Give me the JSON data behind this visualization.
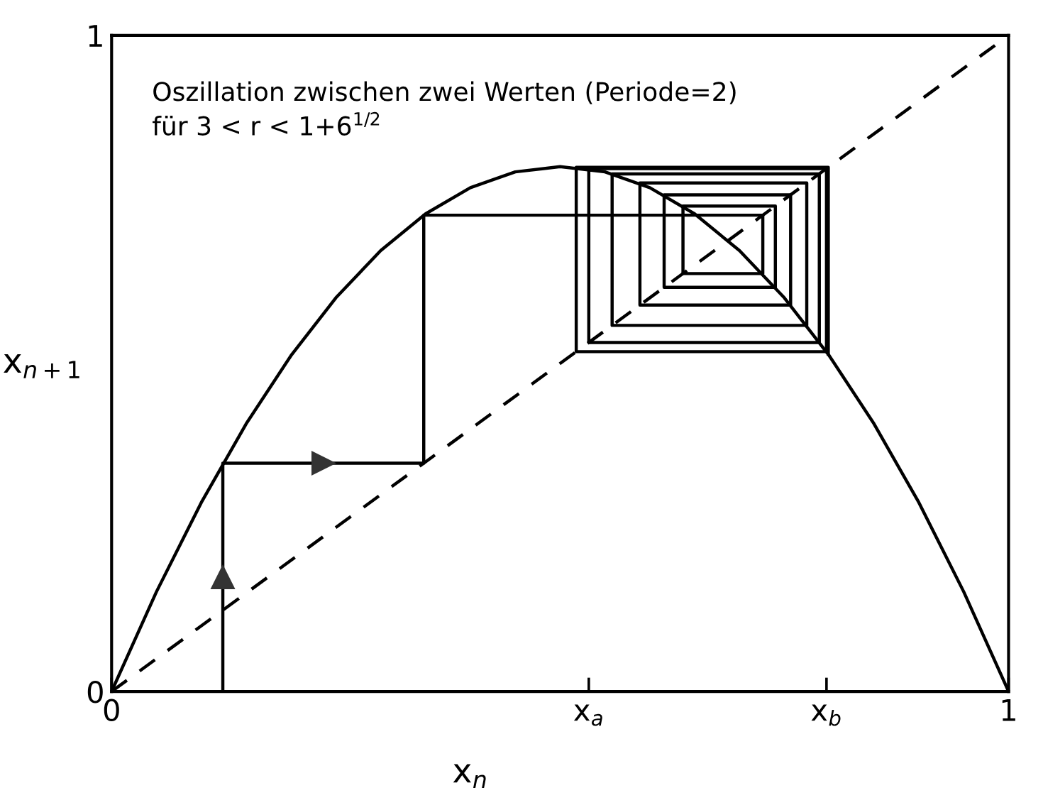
{
  "chart_data": {
    "type": "line",
    "annotations": [
      "Oszillation zwischen zwei Werten (Periode=2)\nfür 3 < r < 1+6$^{1/2}$"
    ],
    "xlabel": "x$_{n}$",
    "ylabel": "x$_{n+1}$",
    "xlim": [
      0,
      1
    ],
    "ylim": [
      0,
      1
    ],
    "xticks": [
      0,
      {
        "value": 0.532,
        "label": "x$_{a}$"
      },
      {
        "value": 0.797,
        "label": "x$_{b}$"
      },
      1
    ],
    "yticks": [
      0,
      1
    ],
    "grid": false,
    "legend": false,
    "series": [
      {
        "color": "#000000",
        "line_style": "solid",
        "x": [
          0,
          0.05,
          0.1,
          0.15,
          0.2,
          0.25,
          0.3,
          0.35,
          0.4,
          0.45,
          0.5,
          0.55,
          0.6,
          0.65,
          0.7,
          0.75,
          0.8,
          0.85,
          0.9,
          0.95,
          1
        ],
        "values": [
          0,
          0.152,
          0.288,
          0.408,
          0.512,
          0.6,
          0.672,
          0.728,
          0.768,
          0.792,
          0.8,
          0.792,
          0.768,
          0.728,
          0.672,
          0.6,
          0.512,
          0.408,
          0.288,
          0.152,
          0
        ]
      },
      {
        "color": "#000000",
        "line_style": "dashed",
        "x": [
          0,
          1
        ],
        "values": [
          0,
          1
        ]
      },
      {
        "color": "#000000",
        "line_style": "solid",
        "x": [
          0.124,
          0.124,
          0.348,
          0.348,
          0.726,
          0.726,
          0.637,
          0.637,
          0.74,
          0.74,
          0.616,
          0.616,
          0.757,
          0.757,
          0.589,
          0.589,
          0.775,
          0.775,
          0.558,
          0.558,
          0.789,
          0.789,
          0.532,
          0.532,
          0.797,
          0.797,
          0.518,
          0.518,
          0.799,
          0.799
        ],
        "values": [
          0,
          0.348,
          0.348,
          0.726,
          0.726,
          0.637,
          0.637,
          0.74,
          0.74,
          0.616,
          0.616,
          0.757,
          0.757,
          0.589,
          0.589,
          0.775,
          0.775,
          0.558,
          0.558,
          0.789,
          0.789,
          0.532,
          0.532,
          0.797,
          0.797,
          0.518,
          0.518,
          0.799,
          0.799,
          0.514
        ]
      }
    ]
  }
}
